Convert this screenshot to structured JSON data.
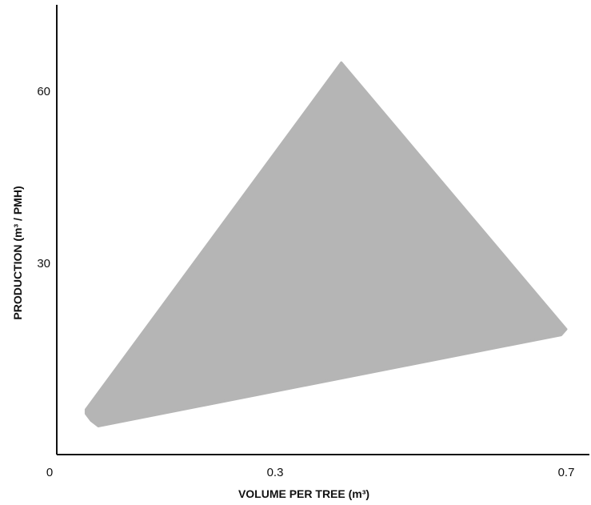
{
  "chart_data": {
    "type": "area",
    "title": "",
    "xlabel": "VOLUME PER TREE (m³)",
    "ylabel": "PRODUCTION (m³ / PMH)",
    "x_ticks": [
      {
        "value": 0,
        "label": "0"
      },
      {
        "value": 0.3,
        "label": "0.3"
      },
      {
        "value": 0.7,
        "label": "0.7"
      }
    ],
    "y_ticks": [
      {
        "value": 30,
        "label": "30"
      },
      {
        "value": 60,
        "label": "60"
      }
    ],
    "xlim": [
      0,
      0.7
    ],
    "ylim": [
      -2,
      75
    ],
    "grid": false,
    "series": [
      {
        "color": "#b5b5b5",
        "points": [
          {
            "x": 0.04,
            "y": 4.5
          },
          {
            "x": 0.391,
            "y": 65
          },
          {
            "x": 0.7,
            "y": 18.5
          },
          {
            "x": 0.693,
            "y": 17.5
          },
          {
            "x": 0.057,
            "y": 1.6
          },
          {
            "x": 0.047,
            "y": 2.6
          },
          {
            "x": 0.04,
            "y": 3.8
          }
        ]
      }
    ]
  }
}
